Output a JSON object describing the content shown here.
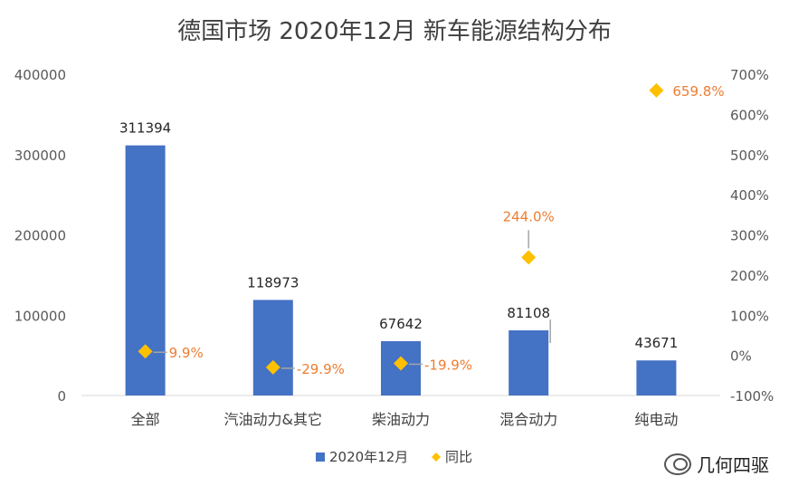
{
  "title": "德国市场 2020年12月 新车能源结构分布",
  "watermark": "几何四驱",
  "chart_data": {
    "type": "bar",
    "categories": [
      "全部",
      "汽油动力&其它",
      "柴油动力",
      "混合动力",
      "纯电动"
    ],
    "series": [
      {
        "name": "2020年12月",
        "type": "bar",
        "axis": "left",
        "color": "#4472C4",
        "values": [
          311394,
          118973,
          67642,
          81108,
          43671
        ],
        "labels": [
          "311394",
          "118973",
          "67642",
          "81108",
          "43671"
        ]
      },
      {
        "name": "同比",
        "type": "scatter",
        "axis": "right",
        "color": "#FFC000",
        "label_color": "#ED7D31",
        "values": [
          9.9,
          -29.9,
          -19.9,
          244.0,
          659.8
        ],
        "labels": [
          "9.9%",
          "-29.9%",
          "-19.9%",
          "244.0%",
          "659.8%"
        ]
      }
    ],
    "y_left": {
      "ylim": [
        0,
        400000
      ],
      "ticks": [
        0,
        100000,
        200000,
        300000,
        400000
      ],
      "tick_labels": [
        "0",
        "100000",
        "200000",
        "300000",
        "400000"
      ]
    },
    "y_right": {
      "ylim": [
        -100,
        700
      ],
      "ticks": [
        -100,
        0,
        100,
        200,
        300,
        400,
        500,
        600,
        700
      ],
      "tick_labels": [
        "-100%",
        "0%",
        "100%",
        "200%",
        "300%",
        "400%",
        "500%",
        "600%",
        "700%"
      ]
    },
    "grid": false,
    "legend": "bottom-center"
  }
}
